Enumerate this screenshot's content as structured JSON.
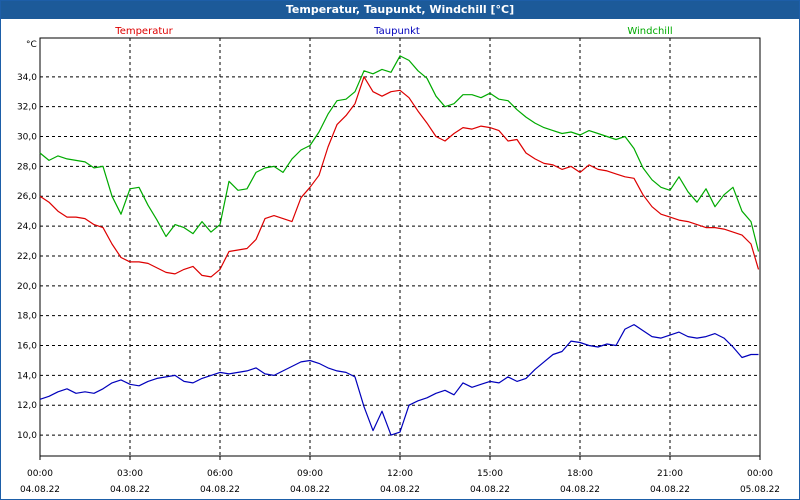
{
  "chart_data": {
    "type": "line",
    "title": "Temperatur, Taupunkt, Windchill [°C]",
    "ylabel": "°C",
    "ylim": [
      8.6,
      36.6
    ],
    "xlim": [
      0,
      24
    ],
    "y_ticks": [
      "10,0",
      "12,0",
      "14,0",
      "16,0",
      "18,0",
      "20,0",
      "22,0",
      "24,0",
      "26,0",
      "28,0",
      "30,0",
      "32,0",
      "34,0"
    ],
    "y_tick_values": [
      10,
      12,
      14,
      16,
      18,
      20,
      22,
      24,
      26,
      28,
      30,
      32,
      34
    ],
    "x_ticks": [
      {
        "value": 0,
        "time": "00:00",
        "date": "04.08.22"
      },
      {
        "value": 3,
        "time": "03:00",
        "date": "04.08.22"
      },
      {
        "value": 6,
        "time": "06:00",
        "date": "04.08.22"
      },
      {
        "value": 9,
        "time": "09:00",
        "date": "04.08.22"
      },
      {
        "value": 12,
        "time": "12:00",
        "date": "04.08.22"
      },
      {
        "value": 15,
        "time": "15:00",
        "date": "04.08.22"
      },
      {
        "value": 18,
        "time": "18:00",
        "date": "04.08.22"
      },
      {
        "value": 21,
        "time": "21:00",
        "date": "04.08.22"
      },
      {
        "value": 24,
        "time": "00:00",
        "date": "05.08.22"
      }
    ],
    "grid": true,
    "series": [
      {
        "name": "Temperatur",
        "color": "#dd0000",
        "x": [
          0,
          0.3,
          0.6,
          0.9,
          1.2,
          1.5,
          1.8,
          2.1,
          2.4,
          2.7,
          3.0,
          3.3,
          3.6,
          3.9,
          4.2,
          4.5,
          4.8,
          5.1,
          5.4,
          5.7,
          6.0,
          6.3,
          6.6,
          6.9,
          7.2,
          7.5,
          7.8,
          8.1,
          8.4,
          8.7,
          9.0,
          9.3,
          9.6,
          9.9,
          10.2,
          10.5,
          10.8,
          11.1,
          11.4,
          11.7,
          12.0,
          12.3,
          12.6,
          12.9,
          13.2,
          13.5,
          13.8,
          14.1,
          14.4,
          14.7,
          15.0,
          15.3,
          15.6,
          15.9,
          16.2,
          16.5,
          16.8,
          17.1,
          17.4,
          17.7,
          18.0,
          18.3,
          18.6,
          18.9,
          19.2,
          19.5,
          19.8,
          20.1,
          20.4,
          20.7,
          21.0,
          21.3,
          21.6,
          21.9,
          22.2,
          22.5,
          22.8,
          23.1,
          23.4,
          23.7,
          23.95
        ],
        "values": [
          26.0,
          25.6,
          25.0,
          24.6,
          24.6,
          24.5,
          24.1,
          23.9,
          22.8,
          21.9,
          21.6,
          21.6,
          21.5,
          21.2,
          20.9,
          20.8,
          21.1,
          21.3,
          20.7,
          20.6,
          21.1,
          22.3,
          22.4,
          22.5,
          23.1,
          24.5,
          24.7,
          24.5,
          24.3,
          25.9,
          26.6,
          27.4,
          29.3,
          30.8,
          31.4,
          32.2,
          34.0,
          33.0,
          32.7,
          33.0,
          33.1,
          32.6,
          31.7,
          30.9,
          30.0,
          29.7,
          30.2,
          30.6,
          30.5,
          30.7,
          30.6,
          30.4,
          29.7,
          29.8,
          28.9,
          28.5,
          28.2,
          28.1,
          27.8,
          28.0,
          27.6,
          28.1,
          27.8,
          27.7,
          27.5,
          27.3,
          27.2,
          26.1,
          25.3,
          24.8,
          24.6,
          24.4,
          24.3,
          24.1,
          23.9,
          23.9,
          23.8,
          23.6,
          23.4,
          22.8,
          21.1
        ]
      },
      {
        "name": "Taupunkt",
        "color": "#0000bb",
        "x": [
          0,
          0.3,
          0.6,
          0.9,
          1.2,
          1.5,
          1.8,
          2.1,
          2.4,
          2.7,
          3.0,
          3.3,
          3.6,
          3.9,
          4.2,
          4.5,
          4.8,
          5.1,
          5.4,
          5.7,
          6.0,
          6.3,
          6.6,
          6.9,
          7.2,
          7.5,
          7.8,
          8.1,
          8.4,
          8.7,
          9.0,
          9.3,
          9.6,
          9.9,
          10.2,
          10.5,
          10.8,
          11.1,
          11.4,
          11.7,
          12.0,
          12.3,
          12.6,
          12.9,
          13.2,
          13.5,
          13.8,
          14.1,
          14.4,
          14.7,
          15.0,
          15.3,
          15.6,
          15.9,
          16.2,
          16.5,
          16.8,
          17.1,
          17.4,
          17.7,
          18.0,
          18.3,
          18.6,
          18.9,
          19.2,
          19.5,
          19.8,
          20.1,
          20.4,
          20.7,
          21.0,
          21.3,
          21.6,
          21.9,
          22.2,
          22.5,
          22.8,
          23.1,
          23.4,
          23.7,
          23.95
        ],
        "values": [
          12.4,
          12.6,
          12.9,
          13.1,
          12.8,
          12.9,
          12.8,
          13.1,
          13.5,
          13.7,
          13.4,
          13.3,
          13.6,
          13.8,
          13.9,
          14.0,
          13.6,
          13.5,
          13.8,
          14.0,
          14.2,
          14.1,
          14.2,
          14.3,
          14.5,
          14.1,
          14.0,
          14.3,
          14.6,
          14.9,
          15.0,
          14.8,
          14.5,
          14.3,
          14.2,
          13.9,
          11.9,
          10.3,
          11.6,
          10.0,
          10.2,
          12.0,
          12.3,
          12.5,
          12.8,
          13.0,
          12.7,
          13.5,
          13.2,
          13.4,
          13.6,
          13.5,
          13.9,
          13.6,
          13.8,
          14.4,
          14.9,
          15.4,
          15.6,
          16.3,
          16.2,
          16.0,
          15.9,
          16.1,
          16.0,
          17.1,
          17.4,
          17.0,
          16.6,
          16.5,
          16.7,
          16.9,
          16.6,
          16.5,
          16.6,
          16.8,
          16.5,
          15.9,
          15.2,
          15.4,
          15.4
        ]
      },
      {
        "name": "Windchill",
        "color": "#00aa00",
        "x": [
          0,
          0.3,
          0.6,
          0.9,
          1.2,
          1.5,
          1.8,
          2.1,
          2.4,
          2.7,
          3.0,
          3.3,
          3.6,
          3.9,
          4.2,
          4.5,
          4.8,
          5.1,
          5.4,
          5.7,
          6.0,
          6.3,
          6.6,
          6.9,
          7.2,
          7.5,
          7.8,
          8.1,
          8.4,
          8.7,
          9.0,
          9.3,
          9.6,
          9.9,
          10.2,
          10.5,
          10.8,
          11.1,
          11.4,
          11.7,
          12.0,
          12.3,
          12.6,
          12.9,
          13.2,
          13.5,
          13.8,
          14.1,
          14.4,
          14.7,
          15.0,
          15.3,
          15.6,
          15.9,
          16.2,
          16.5,
          16.8,
          17.1,
          17.4,
          17.7,
          18.0,
          18.3,
          18.6,
          18.9,
          19.2,
          19.5,
          19.8,
          20.1,
          20.4,
          20.7,
          21.0,
          21.3,
          21.6,
          21.9,
          22.2,
          22.5,
          22.8,
          23.1,
          23.4,
          23.7,
          23.95
        ],
        "values": [
          28.9,
          28.4,
          28.7,
          28.5,
          28.4,
          28.3,
          27.9,
          28.0,
          26.0,
          24.8,
          26.5,
          26.6,
          25.4,
          24.4,
          23.3,
          24.1,
          23.9,
          23.5,
          24.3,
          23.6,
          24.1,
          27.0,
          26.4,
          26.5,
          27.6,
          27.9,
          28.0,
          27.6,
          28.5,
          29.1,
          29.4,
          30.3,
          31.5,
          32.4,
          32.5,
          33.0,
          34.4,
          34.2,
          34.5,
          34.3,
          35.4,
          35.1,
          34.4,
          33.9,
          32.7,
          32.0,
          32.2,
          32.8,
          32.8,
          32.6,
          32.9,
          32.5,
          32.4,
          31.8,
          31.3,
          30.9,
          30.6,
          30.4,
          30.2,
          30.3,
          30.1,
          30.4,
          30.2,
          30.0,
          29.8,
          30.0,
          29.2,
          27.9,
          27.1,
          26.6,
          26.4,
          27.3,
          26.3,
          25.6,
          26.5,
          25.3,
          26.1,
          26.6,
          25.0,
          24.3,
          22.3
        ]
      }
    ]
  }
}
